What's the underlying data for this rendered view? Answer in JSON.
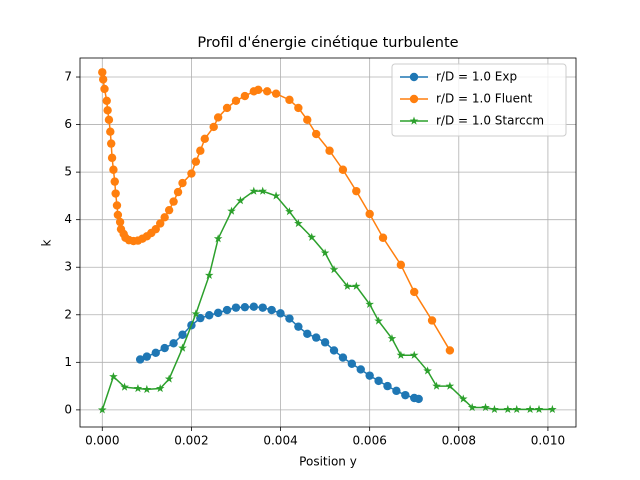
{
  "chart_data": {
    "type": "line",
    "title": "Profil d'énergie cinétique turbulente",
    "x_label": "Position y",
    "y_label": "k",
    "xlim": [
      -0.0005,
      0.01063
    ],
    "ylim": [
      -0.36,
      7.4
    ],
    "xticks": [
      {
        "value": 0,
        "label": "0.000"
      },
      {
        "value": 0.002,
        "label": "0.002"
      },
      {
        "value": 0.004,
        "label": "0.004"
      },
      {
        "value": 0.006,
        "label": "0.006"
      },
      {
        "value": 0.008,
        "label": "0.008"
      },
      {
        "value": 0.01,
        "label": "0.010"
      }
    ],
    "yticks": [
      0,
      1,
      2,
      3,
      4,
      5,
      6,
      7
    ],
    "grid": true,
    "legend_position": "upper-right",
    "series": [
      {
        "name": "r/D = 1.0 Exp",
        "color": "#1f77b4",
        "marker": "circle",
        "x": [
          0.00085,
          0.001,
          0.0012,
          0.0014,
          0.0016,
          0.0018,
          0.002,
          0.0022,
          0.0024,
          0.0026,
          0.0028,
          0.003,
          0.0032,
          0.0034,
          0.0036,
          0.0038,
          0.004,
          0.0042,
          0.0044,
          0.0046,
          0.0048,
          0.005,
          0.0052,
          0.0054,
          0.0056,
          0.0058,
          0.006,
          0.0062,
          0.0064,
          0.0066,
          0.0068,
          0.007,
          0.0071
        ],
        "values": [
          1.06,
          1.12,
          1.2,
          1.3,
          1.4,
          1.58,
          1.78,
          1.93,
          1.99,
          2.04,
          2.1,
          2.15,
          2.16,
          2.17,
          2.15,
          2.1,
          2.03,
          1.92,
          1.75,
          1.6,
          1.52,
          1.42,
          1.25,
          1.1,
          0.97,
          0.85,
          0.72,
          0.61,
          0.5,
          0.4,
          0.31,
          0.25,
          0.23
        ]
      },
      {
        "name": "r/D = 1.0 Fluent",
        "color": "#ff7f0e",
        "marker": "circle",
        "x": [
          0,
          2e-05,
          5e-05,
          0.0001,
          0.00012,
          0.00015,
          0.00018,
          0.0002,
          0.00022,
          0.00025,
          0.00028,
          0.0003,
          0.00033,
          0.00035,
          0.0004,
          0.00042,
          0.00048,
          0.00052,
          0.0006,
          0.0007,
          0.0008,
          0.0009,
          0.001,
          0.0011,
          0.0012,
          0.0013,
          0.0014,
          0.0015,
          0.0016,
          0.0017,
          0.0018,
          0.002,
          0.0021,
          0.0022,
          0.0023,
          0.0025,
          0.0026,
          0.0028,
          0.003,
          0.0032,
          0.0034,
          0.0035,
          0.0037,
          0.0039,
          0.0042,
          0.0044,
          0.0046,
          0.0048,
          0.0051,
          0.0054,
          0.0057,
          0.006,
          0.0063,
          0.0067,
          0.007,
          0.0074,
          0.0078
        ],
        "values": [
          7.1,
          6.95,
          6.75,
          6.5,
          6.3,
          6.1,
          5.85,
          5.6,
          5.3,
          5.05,
          4.8,
          4.55,
          4.3,
          4.1,
          3.95,
          3.8,
          3.7,
          3.62,
          3.57,
          3.55,
          3.56,
          3.6,
          3.65,
          3.72,
          3.8,
          3.92,
          4.05,
          4.2,
          4.38,
          4.58,
          4.77,
          4.97,
          5.22,
          5.45,
          5.7,
          5.95,
          6.15,
          6.35,
          6.5,
          6.6,
          6.7,
          6.73,
          6.7,
          6.65,
          6.52,
          6.35,
          6.1,
          5.8,
          5.45,
          5.05,
          4.6,
          4.12,
          3.62,
          3.05,
          2.48,
          1.88,
          1.25
        ]
      },
      {
        "name": "r/D = 1.0 Starccm",
        "color": "#2ca02c",
        "marker": "star",
        "x": [
          0,
          0.00025,
          0.0005,
          0.0008,
          0.001,
          0.0013,
          0.0015,
          0.0018,
          0.0021,
          0.0024,
          0.0026,
          0.0029,
          0.0031,
          0.0034,
          0.0036,
          0.0039,
          0.0042,
          0.0044,
          0.0047,
          0.005,
          0.0052,
          0.0055,
          0.0057,
          0.006,
          0.0062,
          0.0065,
          0.0067,
          0.007,
          0.0073,
          0.0075,
          0.0078,
          0.0081,
          0.0083,
          0.0086,
          0.0088,
          0.0091,
          0.0093,
          0.0096,
          0.0098,
          0.0101
        ],
        "values": [
          0,
          0.7,
          0.48,
          0.45,
          0.43,
          0.45,
          0.65,
          1.3,
          2.02,
          2.83,
          3.6,
          4.18,
          4.4,
          4.6,
          4.6,
          4.5,
          4.17,
          3.92,
          3.63,
          3.3,
          2.95,
          2.6,
          2.6,
          2.22,
          1.87,
          1.5,
          1.15,
          1.15,
          0.82,
          0.5,
          0.5,
          0.23,
          0.05,
          0.05,
          0.01,
          0.01,
          0.01,
          0.01,
          0.01,
          0.01
        ]
      }
    ]
  }
}
